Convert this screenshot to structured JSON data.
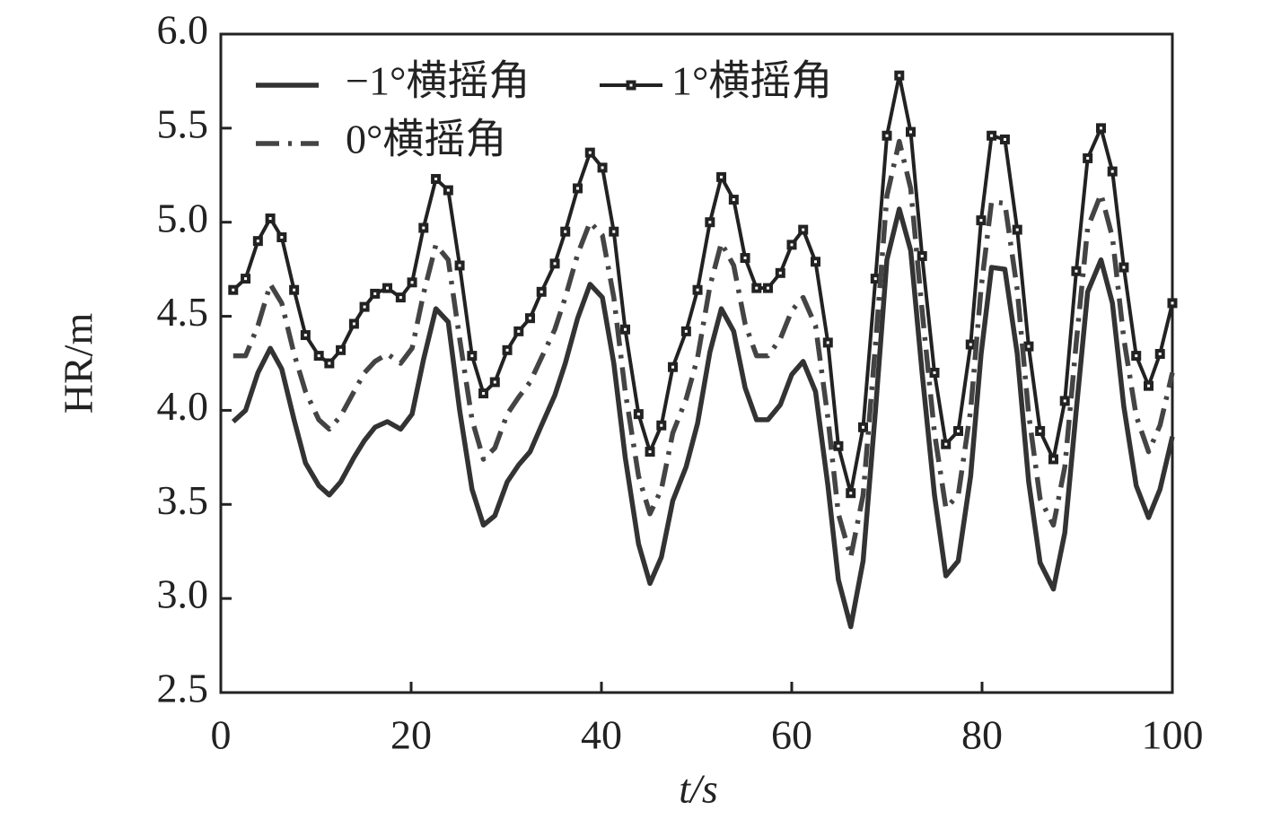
{
  "chart_data": {
    "type": "line",
    "xlabel": "t/s",
    "ylabel": "HR/m",
    "x": [
      1.3,
      2.6,
      3.9,
      5.2,
      6.4,
      7.7,
      8.9,
      10.3,
      11.4,
      12.6,
      14.0,
      15.1,
      16.2,
      17.5,
      18.9,
      20.1,
      21.3,
      22.6,
      23.9,
      25.1,
      26.4,
      27.6,
      28.8,
      30.1,
      31.3,
      32.5,
      33.7,
      35.1,
      36.2,
      37.5,
      38.8,
      40.1,
      41.3,
      42.5,
      43.9,
      45.1,
      46.3,
      47.5,
      48.9,
      50.1,
      51.4,
      52.6,
      53.9,
      55.1,
      56.3,
      57.5,
      58.8,
      60.0,
      61.2,
      62.5,
      63.8,
      64.9,
      66.2,
      67.5,
      68.8,
      70.0,
      71.3,
      72.5,
      73.7,
      75.0,
      76.2,
      77.5,
      78.8,
      79.9,
      81.0,
      82.4,
      83.7,
      84.9,
      86.1,
      87.5,
      88.7,
      89.9,
      91.1,
      92.5,
      93.7,
      94.9,
      96.2,
      97.5,
      98.7,
      100.0
    ],
    "series": [
      {
        "name": "−1°横摇角",
        "color": "#333333",
        "linestyle": "solid",
        "marker": null,
        "values": [
          3.94,
          4.0,
          4.2,
          4.33,
          4.22,
          3.95,
          3.72,
          3.6,
          3.55,
          3.62,
          3.75,
          3.84,
          3.91,
          3.94,
          3.9,
          3.98,
          4.27,
          4.54,
          4.47,
          4.0,
          3.58,
          3.39,
          3.44,
          3.62,
          3.71,
          3.78,
          3.92,
          4.08,
          4.25,
          4.49,
          4.67,
          4.6,
          4.25,
          3.75,
          3.29,
          3.08,
          3.22,
          3.52,
          3.7,
          3.93,
          4.31,
          4.54,
          4.42,
          4.12,
          3.95,
          3.95,
          4.03,
          4.19,
          4.26,
          4.1,
          3.6,
          3.1,
          2.85,
          3.2,
          4.0,
          4.8,
          5.07,
          4.85,
          4.2,
          3.55,
          3.12,
          3.2,
          3.65,
          4.3,
          4.76,
          4.75,
          4.3,
          3.62,
          3.19,
          3.05,
          3.35,
          4.0,
          4.63,
          4.8,
          4.57,
          4.02,
          3.6,
          3.43,
          3.58,
          3.86
        ]
      },
      {
        "name": "1°横摇角",
        "color": "#222222",
        "linestyle": "solid",
        "marker": "square",
        "values": [
          4.64,
          4.7,
          4.9,
          5.02,
          4.92,
          4.64,
          4.4,
          4.29,
          4.25,
          4.32,
          4.46,
          4.55,
          4.62,
          4.65,
          4.6,
          4.68,
          4.97,
          5.23,
          5.17,
          4.77,
          4.29,
          4.09,
          4.15,
          4.32,
          4.42,
          4.49,
          4.63,
          4.78,
          4.95,
          5.18,
          5.37,
          5.29,
          4.95,
          4.43,
          3.98,
          3.78,
          3.92,
          4.23,
          4.42,
          4.64,
          5.0,
          5.24,
          5.12,
          4.81,
          4.65,
          4.65,
          4.73,
          4.88,
          4.96,
          4.79,
          4.36,
          3.81,
          3.56,
          3.91,
          4.7,
          5.46,
          5.78,
          5.48,
          4.82,
          4.2,
          3.82,
          3.89,
          4.35,
          5.01,
          5.46,
          5.44,
          4.96,
          4.34,
          3.89,
          3.74,
          4.05,
          4.74,
          5.34,
          5.5,
          5.27,
          4.76,
          4.29,
          4.13,
          4.3,
          4.57
        ]
      },
      {
        "name": "0°横摇角",
        "color": "#444444",
        "linestyle": "dashdot",
        "marker": null,
        "values": [
          4.29,
          4.29,
          4.45,
          4.67,
          4.57,
          4.3,
          4.1,
          3.95,
          3.9,
          3.97,
          4.1,
          4.2,
          4.26,
          4.3,
          4.25,
          4.33,
          4.62,
          4.88,
          4.8,
          4.38,
          3.95,
          3.74,
          3.8,
          3.98,
          4.07,
          4.15,
          4.28,
          4.43,
          4.6,
          4.83,
          5.0,
          4.93,
          4.6,
          4.1,
          3.65,
          3.45,
          3.58,
          3.88,
          4.06,
          4.28,
          4.66,
          4.89,
          4.77,
          4.46,
          4.29,
          4.29,
          4.38,
          4.53,
          4.6,
          4.45,
          3.96,
          3.45,
          3.22,
          3.55,
          4.35,
          5.14,
          5.43,
          5.18,
          4.53,
          3.88,
          3.48,
          3.55,
          4.0,
          4.65,
          5.11,
          5.1,
          4.64,
          3.98,
          3.53,
          3.39,
          3.7,
          4.36,
          4.97,
          5.15,
          4.92,
          4.38,
          3.97,
          3.78,
          3.92,
          4.2
        ]
      }
    ],
    "xlim": [
      0,
      100
    ],
    "xticks": [
      0,
      20,
      40,
      60,
      80,
      100
    ],
    "ylim": [
      2.5,
      6.0
    ],
    "yticks": [
      {
        "value": 2.5,
        "label": "2.5"
      },
      {
        "value": 3,
        "label": "3.0"
      },
      {
        "value": 3.5,
        "label": "3.5"
      },
      {
        "value": 4,
        "label": "4.0"
      },
      {
        "value": 4.5,
        "label": "4.5"
      },
      {
        "value": 5,
        "label": "5.0"
      },
      {
        "value": 5.5,
        "label": "5.5"
      },
      {
        "value": 6,
        "label": "6.0"
      }
    ],
    "grid": false,
    "legend": "upper left"
  }
}
